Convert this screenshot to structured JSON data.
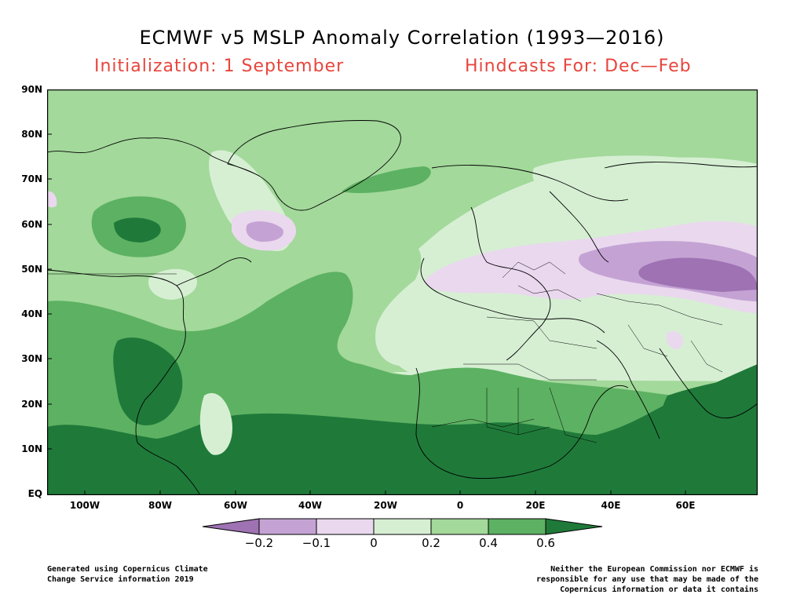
{
  "title": "ECMWF v5 MSLP Anomaly Correlation (1993—2016)",
  "subtitle_left": "Initialization: 1 September",
  "subtitle_right": "Hindcasts For: Dec—Feb",
  "lat_labels": [
    "90N",
    "80N",
    "70N",
    "60N",
    "50N",
    "40N",
    "30N",
    "20N",
    "10N",
    "EQ"
  ],
  "lon_labels": [
    "100W",
    "80W",
    "60W",
    "40W",
    "20W",
    "0",
    "20E",
    "40E",
    "60E"
  ],
  "colorbar": {
    "labels": [
      "−0.2",
      "−0.1",
      "0",
      "0.2",
      "0.4",
      "0.6"
    ],
    "colors": [
      "#9e72b3",
      "#c4a3d4",
      "#ead8ee",
      "#d6efd3",
      "#a3d99b",
      "#5db162",
      "#1f7a3a"
    ]
  },
  "footer_left_1": "Generated using Copernicus Climate",
  "footer_left_2": "Change Service information 2019",
  "footer_right_1": "Neither the European Commission nor ECMWF is",
  "footer_right_2": "responsible for any use that may be made of the",
  "footer_right_3": "Copernicus information or data it contains"
}
